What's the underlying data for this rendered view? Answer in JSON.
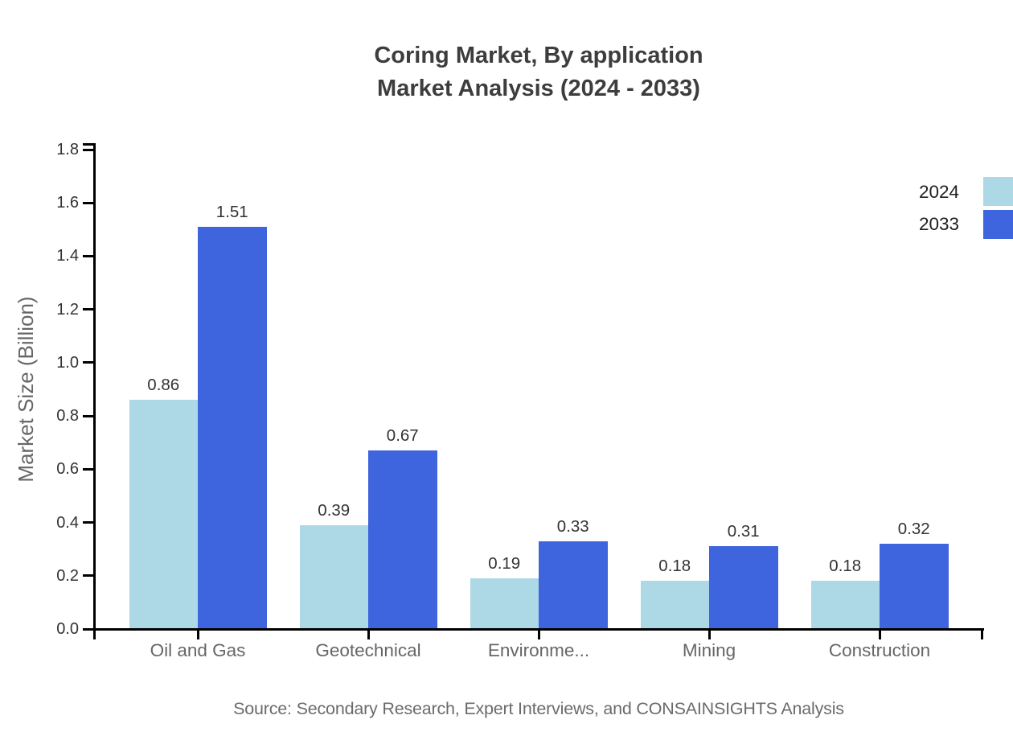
{
  "title": {
    "line1": "Coring Market, By application",
    "line2": "Market Analysis (2024 - 2033)"
  },
  "source": {
    "text": "Source: Secondary Research, Expert Interviews, and CONSAINSIGHTS Analysis"
  },
  "legend": [
    {
      "label": "2024",
      "color": "#ADD8E6"
    },
    {
      "label": "2033",
      "color": "#3E64DE"
    }
  ],
  "colors": {
    "series_2024": "#ADD8E6",
    "series_2033": "#3E64DE",
    "axis": "#000000",
    "title_text": "#3d3d3d",
    "tick_text": "#333333",
    "category_text": "#666666",
    "source_text": "#6b6b6b"
  },
  "chart_data": {
    "type": "bar",
    "categories": [
      "Oil and Gas",
      "Geotechnical",
      "Environme...",
      "Mining",
      "Construction"
    ],
    "series": [
      {
        "name": "2024",
        "color": "#ADD8E6",
        "values": [
          0.86,
          0.39,
          0.19,
          0.18,
          0.18
        ]
      },
      {
        "name": "2033",
        "color": "#3E64DE",
        "values": [
          1.51,
          0.67,
          0.33,
          0.31,
          0.32
        ]
      }
    ],
    "title": "Coring Market, By application Market Analysis (2024 - 2033)",
    "xlabel": "",
    "ylabel": "Market Size (Billion)",
    "ylim": [
      0,
      1.8
    ],
    "ytick_step": 0.2,
    "value_label_decimals": 2,
    "grid": false,
    "legend_position": "top-right",
    "value_labels": true
  }
}
